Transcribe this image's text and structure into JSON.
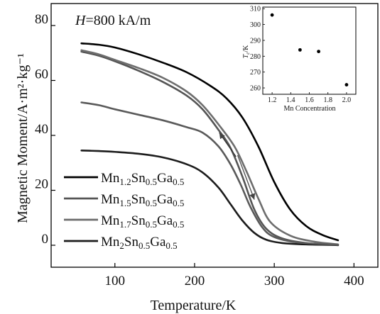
{
  "chart_data": [
    {
      "type": "line",
      "annotation_prefix": "H",
      "annotation_value": "=800 kA/m",
      "xlabel": "Temperature/K",
      "ylabel": "Magnetic Moment/A·m²·kg⁻¹",
      "x_ticks": [
        100,
        200,
        300,
        400
      ],
      "y_ticks": [
        0,
        20,
        40,
        60,
        80
      ],
      "xlim": [
        20,
        430
      ],
      "ylim": [
        -8,
        88
      ],
      "grid": false,
      "legend_position": "lower-left",
      "series": [
        {
          "name": "Mn1.2Sn0.5Ga0.5",
          "name_parts": [
            [
              "Mn",
              false
            ],
            [
              "1.2",
              true
            ],
            [
              "Sn",
              false
            ],
            [
              "0.5",
              true
            ],
            [
              "Ga",
              false
            ],
            [
              "0.5",
              true
            ]
          ],
          "color": "#000000",
          "x": [
            58,
            80,
            100,
            130,
            160,
            190,
            220,
            240,
            260,
            280,
            300,
            320,
            340,
            360,
            380
          ],
          "y": [
            73.5,
            73.0,
            72.0,
            69.5,
            66.5,
            63.0,
            58.0,
            53.5,
            46.5,
            36.0,
            23.0,
            13.0,
            7.0,
            3.8,
            1.8
          ]
        },
        {
          "name": "Mn1.5Sn0.5Ga0.5",
          "name_parts": [
            [
              "Mn",
              false
            ],
            [
              "1.5",
              true
            ],
            [
              "Sn",
              false
            ],
            [
              "0.5",
              true
            ],
            [
              "Ga",
              false
            ],
            [
              "0.5",
              true
            ]
          ],
          "color": "#555555",
          "x": [
            58,
            80,
            100,
            130,
            160,
            190,
            210,
            230,
            245,
            260,
            275,
            290,
            310,
            340,
            380
          ],
          "y": [
            70.5,
            69.0,
            67.0,
            63.5,
            59.5,
            54.5,
            49.5,
            42.0,
            35.5,
            25.0,
            13.0,
            6.0,
            2.5,
            0.8,
            0.0
          ]
        },
        {
          "name": "Mn1.7Sn0.5Ga0.5",
          "name_parts": [
            [
              "Mn",
              false
            ],
            [
              "1.7",
              true
            ],
            [
              "Sn",
              false
            ],
            [
              "0.5",
              true
            ],
            [
              "Ga",
              false
            ],
            [
              "0.5",
              true
            ]
          ],
          "color": "#6d6d6d",
          "x": [
            58,
            80,
            100,
            130,
            160,
            190,
            210,
            230,
            250,
            265,
            280,
            295,
            320,
            350,
            380
          ],
          "y": [
            71.0,
            69.5,
            67.5,
            64.5,
            61.0,
            56.0,
            51.0,
            44.0,
            36.0,
            27.0,
            17.0,
            8.5,
            3.5,
            1.3,
            0.3
          ]
        },
        {
          "name": "Mn2Sn0.5Ga0.5",
          "name_parts": [
            [
              "Mn",
              false
            ],
            [
              "2",
              true
            ],
            [
              "Sn",
              false
            ],
            [
              "0.5",
              true
            ],
            [
              "Ga",
              false
            ],
            [
              "0.5",
              true
            ]
          ],
          "color": "#1c1c1c",
          "x": [
            58,
            80,
            100,
            130,
            160,
            190,
            210,
            230,
            245,
            260,
            275,
            290,
            310,
            340,
            380
          ],
          "y": [
            34.5,
            34.3,
            34.0,
            33.3,
            32.0,
            29.5,
            26.5,
            21.0,
            15.0,
            9.0,
            4.5,
            2.0,
            0.8,
            0.3,
            0.1
          ]
        },
        {
          "name": "",
          "color": "#5a5a5a",
          "x": [
            58,
            80,
            100,
            130,
            160,
            190,
            210,
            230,
            245,
            258,
            270,
            285,
            300,
            330,
            380
          ],
          "y": [
            52.0,
            51.0,
            49.5,
            47.5,
            45.5,
            43.0,
            41.0,
            36.0,
            29.5,
            22.0,
            14.0,
            6.5,
            3.0,
            1.0,
            0.2
          ]
        }
      ],
      "arrows": [
        {
          "direction": "heating",
          "x_from": 254,
          "x_to": 275
        },
        {
          "direction": "cooling",
          "x_from": 252,
          "x_to": 231
        }
      ]
    },
    {
      "type": "scatter",
      "xlabel": "Mn Concentration",
      "ylabel_main": "T",
      "ylabel_sub": "c",
      "ylabel_unit": "/K",
      "x_ticks": [
        "1.2",
        "1.4",
        "1.6",
        "1.8",
        "2.0"
      ],
      "y_ticks": [
        "260",
        "270",
        "280",
        "290",
        "300",
        "310"
      ],
      "xlim": [
        1.1,
        2.1
      ],
      "ylim": [
        256,
        311
      ],
      "points": [
        {
          "x": 1.2,
          "y": 306
        },
        {
          "x": 1.5,
          "y": 284
        },
        {
          "x": 1.7,
          "y": 283
        },
        {
          "x": 2.0,
          "y": 262
        }
      ]
    }
  ]
}
